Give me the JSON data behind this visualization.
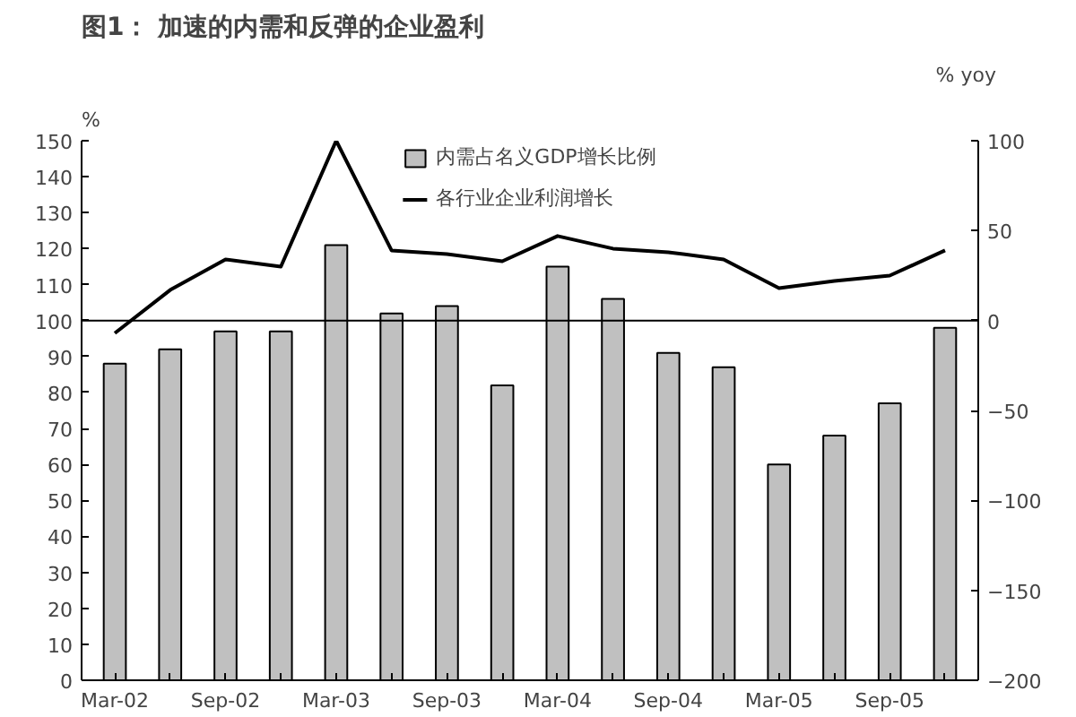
{
  "chart_data": {
    "type": "bar",
    "title": "图1： 加速的内需和反弹的企业盈利",
    "ylabel": "%",
    "y2label": "% yoy",
    "categories": [
      "Mar-02",
      null,
      "Sep-02",
      null,
      "Mar-03",
      null,
      "Sep-03",
      null,
      "Mar-04",
      null,
      "Sep-04",
      null,
      "Mar-05",
      null,
      "Sep-05",
      null
    ],
    "series": [
      {
        "name": "内需占名义GDP增长比例",
        "color": "#c0c0c0",
        "values": [
          88,
          92,
          97,
          97,
          121,
          102,
          104,
          82,
          115,
          106,
          91,
          87,
          60,
          68,
          77,
          98
        ]
      },
      {
        "name": "各行业企业利润增长",
        "type": "line",
        "axis": "y2",
        "color": "#000000",
        "values": [
          -7,
          17,
          34,
          30,
          100,
          39,
          37,
          33,
          47,
          40,
          38,
          34,
          18,
          22,
          25,
          39
        ]
      }
    ],
    "ylim": [
      0,
      150
    ],
    "yticks": [
      0,
      10,
      20,
      30,
      40,
      50,
      60,
      70,
      80,
      90,
      100,
      110,
      120,
      130,
      140,
      150
    ],
    "y2lim": [
      -200,
      100
    ],
    "y2ticks": [
      -200,
      -150,
      -100,
      -50,
      0,
      50,
      100
    ],
    "ref_lines": [
      {
        "axis": "y2",
        "value": 0,
        "label": null,
        "color": "#000000"
      }
    ],
    "grid": false,
    "legend": "top",
    "marker": "none",
    "line_style": "solid"
  }
}
